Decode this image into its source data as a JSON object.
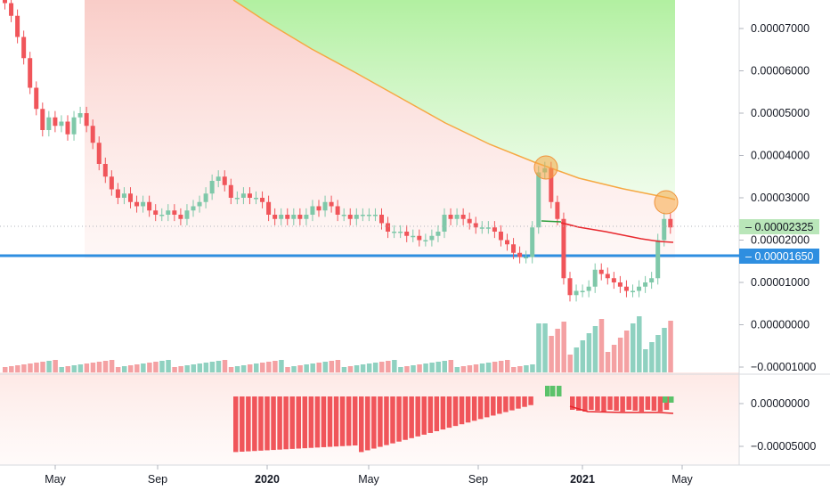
{
  "chart_data": {
    "type": "candlestick",
    "price_axis": {
      "ticks": [
        "0.00007000",
        "0.00006000",
        "0.00005000",
        "0.00004000",
        "0.00003000",
        "0.00002000",
        "0.00001000",
        "0.00000000",
        "−0.00001000"
      ],
      "tick_values": [
        7e-05,
        6e-05,
        5e-05,
        4e-05,
        3e-05,
        2e-05,
        1e-05,
        0.0,
        -1e-05
      ],
      "last_price_label": "0.00002325",
      "last_price": 2.325e-05,
      "support_label": "0.00001650",
      "support_price": 1.65e-05
    },
    "oscillator_axis": {
      "ticks": [
        "0.00000000",
        "−0.00005000"
      ],
      "tick_values": [
        0.0,
        -5e-05
      ]
    },
    "time_axis": {
      "labels": [
        {
          "text": "May",
          "bold": false
        },
        {
          "text": "Sep",
          "bold": false
        },
        {
          "text": "2020",
          "bold": true
        },
        {
          "text": "May",
          "bold": false
        },
        {
          "text": "Sep",
          "bold": false
        },
        {
          "text": "2021",
          "bold": true
        },
        {
          "text": "May",
          "bold": false
        }
      ]
    },
    "colors": {
      "up": "#7fc8a9",
      "down": "#f0555a",
      "support_line": "#2e8ee0",
      "ma_line": "#e8282e",
      "band_line": "#f6a843",
      "highlight_circle": "#f6a843",
      "last_price_tag": "#b9e6b9",
      "support_tag": "#2e8ee0"
    },
    "band_region": "green upper zone, red lower gradient",
    "highlights": [
      "circle on band touch (Dec 2020)",
      "circle on band touch (Apr 2021)"
    ]
  }
}
